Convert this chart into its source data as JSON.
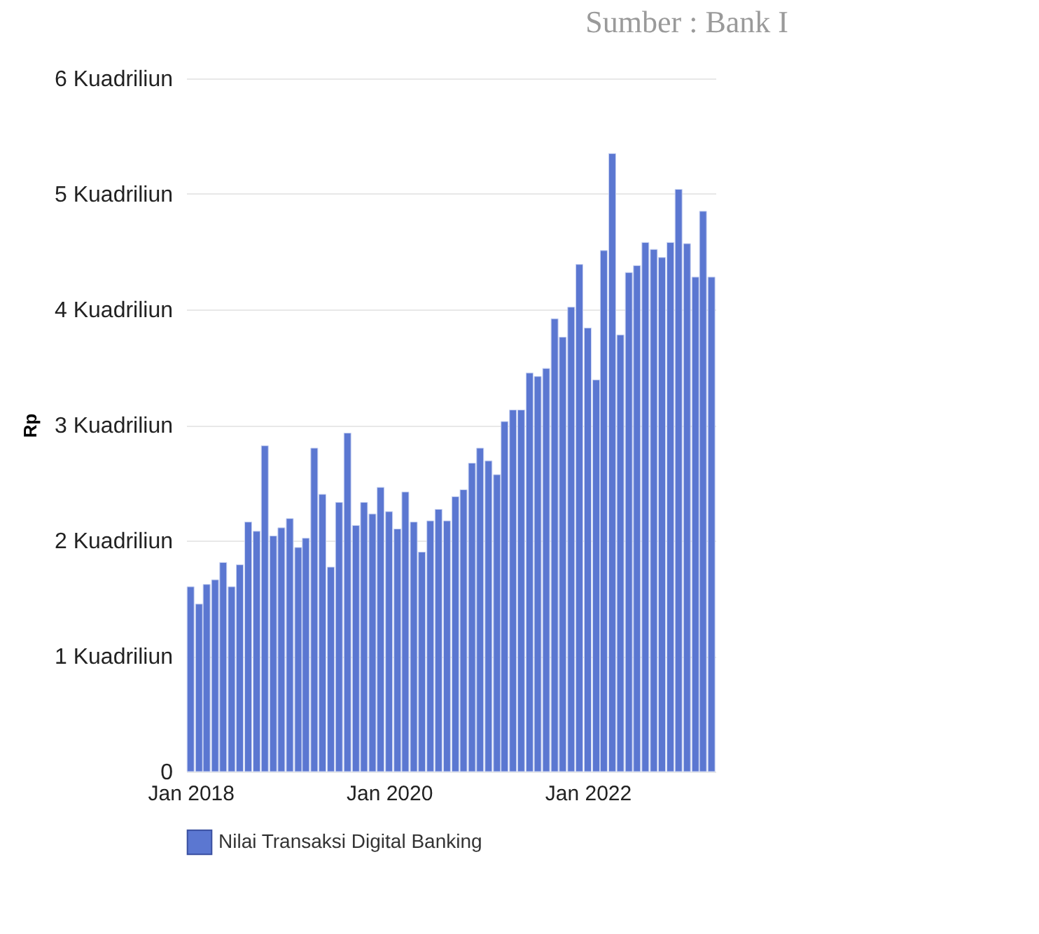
{
  "chart_data": {
    "type": "bar",
    "annotations": [
      "Sumber : Bank I"
    ],
    "ylabel": "Rp",
    "x": [
      "2018-01",
      "2018-02",
      "2018-03",
      "2018-04",
      "2018-05",
      "2018-06",
      "2018-07",
      "2018-08",
      "2018-09",
      "2018-10",
      "2018-11",
      "2018-12",
      "2019-01",
      "2019-02",
      "2019-03",
      "2019-04",
      "2019-05",
      "2019-06",
      "2019-07",
      "2019-08",
      "2019-09",
      "2019-10",
      "2019-11",
      "2019-12",
      "2020-01",
      "2020-02",
      "2020-03",
      "2020-04",
      "2020-05",
      "2020-06",
      "2020-07",
      "2020-08",
      "2020-09",
      "2020-10",
      "2020-11",
      "2020-12",
      "2021-01",
      "2021-02",
      "2021-03",
      "2021-04",
      "2021-05",
      "2021-06",
      "2021-07",
      "2021-08",
      "2021-09",
      "2021-10",
      "2021-11",
      "2021-12",
      "2022-01",
      "2022-02",
      "2022-03",
      "2022-04",
      "2022-05",
      "2022-06",
      "2022-07",
      "2022-08",
      "2022-09",
      "2022-10",
      "2022-11",
      "2022-12",
      "2023-01",
      "2023-02",
      "2023-03",
      "2023-04"
    ],
    "series": [
      {
        "name": "Nilai Transaksi Digital Banking",
        "color": "#5b77d1",
        "values": [
          1.6,
          1.45,
          1.62,
          1.66,
          1.81,
          1.6,
          1.79,
          2.16,
          2.08,
          2.82,
          2.04,
          2.11,
          2.19,
          1.94,
          2.02,
          2.8,
          2.4,
          1.77,
          2.33,
          2.93,
          2.13,
          2.33,
          2.23,
          2.46,
          2.25,
          2.1,
          2.42,
          2.16,
          1.9,
          2.17,
          2.27,
          2.17,
          2.38,
          2.44,
          2.67,
          2.8,
          2.69,
          2.57,
          3.03,
          3.13,
          3.13,
          3.45,
          3.42,
          3.49,
          3.92,
          3.76,
          4.02,
          4.39,
          3.84,
          3.39,
          4.51,
          5.35,
          3.78,
          4.32,
          4.38,
          4.58,
          4.52,
          4.45,
          4.58,
          5.04,
          4.57,
          4.28,
          4.85,
          4.28
        ]
      }
    ],
    "xlim": [
      "2017-12-16",
      "2023-04-16"
    ],
    "xticks": [
      {
        "value": "2018-01",
        "label": "Jan 2018"
      },
      {
        "value": "2020-01",
        "label": "Jan 2020"
      },
      {
        "value": "2022-01",
        "label": "Jan 2022"
      }
    ],
    "ylim": [
      0,
      6
    ],
    "yticks": [
      {
        "value": 0,
        "label": "0"
      },
      {
        "value": 1,
        "label": "1 Kuadriliun"
      },
      {
        "value": 2,
        "label": "2 Kuadriliun"
      },
      {
        "value": 3,
        "label": "3 Kuadriliun"
      },
      {
        "value": 4,
        "label": "4 Kuadriliun"
      },
      {
        "value": 5,
        "label": "5 Kuadriliun"
      },
      {
        "value": 6,
        "label": "6 Kuadriliun"
      }
    ],
    "grid": "y",
    "legend": "bottom"
  }
}
